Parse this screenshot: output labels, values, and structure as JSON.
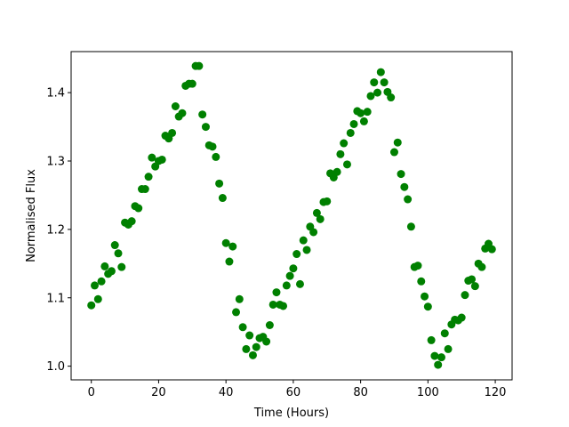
{
  "chart_data": {
    "type": "scatter",
    "title": "",
    "xlabel": "Time (Hours)",
    "ylabel": "Normalised Flux",
    "xlim": [
      -6,
      125
    ],
    "ylim": [
      0.98,
      1.46
    ],
    "xticks": [
      0,
      20,
      40,
      60,
      80,
      100,
      120
    ],
    "yticks": [
      1.0,
      1.1,
      1.2,
      1.3,
      1.4
    ],
    "ytick_labels": [
      "1.0",
      "1.1",
      "1.2",
      "1.3",
      "1.4"
    ],
    "grid": false,
    "marker_color": "#008000",
    "series": [
      {
        "points": [
          [
            0,
            1.089
          ],
          [
            1,
            1.118
          ],
          [
            2,
            1.098
          ],
          [
            3,
            1.124
          ],
          [
            4,
            1.146
          ],
          [
            5,
            1.135
          ],
          [
            6,
            1.139
          ],
          [
            7,
            1.177
          ],
          [
            8,
            1.165
          ],
          [
            9,
            1.145
          ],
          [
            10,
            1.21
          ],
          [
            11,
            1.207
          ],
          [
            12,
            1.212
          ],
          [
            13,
            1.234
          ],
          [
            14,
            1.231
          ],
          [
            15,
            1.259
          ],
          [
            16,
            1.259
          ],
          [
            17,
            1.277
          ],
          [
            18,
            1.305
          ],
          [
            19,
            1.292
          ],
          [
            20,
            1.3
          ],
          [
            21,
            1.302
          ],
          [
            22,
            1.337
          ],
          [
            23,
            1.333
          ],
          [
            24,
            1.341
          ],
          [
            25,
            1.38
          ],
          [
            26,
            1.365
          ],
          [
            27,
            1.37
          ],
          [
            28,
            1.41
          ],
          [
            29,
            1.413
          ],
          [
            30,
            1.413
          ],
          [
            31,
            1.439
          ],
          [
            32,
            1.439
          ],
          [
            33,
            1.368
          ],
          [
            34,
            1.35
          ],
          [
            35,
            1.323
          ],
          [
            36,
            1.321
          ],
          [
            37,
            1.306
          ],
          [
            38,
            1.267
          ],
          [
            39,
            1.246
          ],
          [
            40,
            1.18
          ],
          [
            41,
            1.153
          ],
          [
            42,
            1.175
          ],
          [
            43,
            1.079
          ],
          [
            44,
            1.098
          ],
          [
            45,
            1.057
          ],
          [
            46,
            1.025
          ],
          [
            47,
            1.045
          ],
          [
            48,
            1.016
          ],
          [
            49,
            1.028
          ],
          [
            50,
            1.041
          ],
          [
            51,
            1.043
          ],
          [
            52,
            1.036
          ],
          [
            53,
            1.06
          ],
          [
            54,
            1.09
          ],
          [
            55,
            1.108
          ],
          [
            56,
            1.09
          ],
          [
            57,
            1.088
          ],
          [
            58,
            1.118
          ],
          [
            59,
            1.132
          ],
          [
            60,
            1.143
          ],
          [
            61,
            1.164
          ],
          [
            62,
            1.12
          ],
          [
            63,
            1.184
          ],
          [
            64,
            1.17
          ],
          [
            65,
            1.204
          ],
          [
            66,
            1.196
          ],
          [
            67,
            1.224
          ],
          [
            68,
            1.215
          ],
          [
            69,
            1.24
          ],
          [
            70,
            1.241
          ],
          [
            71,
            1.282
          ],
          [
            72,
            1.276
          ],
          [
            73,
            1.284
          ],
          [
            74,
            1.31
          ],
          [
            75,
            1.326
          ],
          [
            76,
            1.295
          ],
          [
            77,
            1.341
          ],
          [
            78,
            1.354
          ],
          [
            79,
            1.373
          ],
          [
            80,
            1.37
          ],
          [
            81,
            1.358
          ],
          [
            82,
            1.372
          ],
          [
            83,
            1.395
          ],
          [
            84,
            1.415
          ],
          [
            85,
            1.4
          ],
          [
            86,
            1.43
          ],
          [
            87,
            1.415
          ],
          [
            88,
            1.401
          ],
          [
            89,
            1.393
          ],
          [
            90,
            1.313
          ],
          [
            91,
            1.327
          ],
          [
            92,
            1.281
          ],
          [
            93,
            1.262
          ],
          [
            94,
            1.244
          ],
          [
            95,
            1.204
          ],
          [
            96,
            1.145
          ],
          [
            97,
            1.147
          ],
          [
            98,
            1.124
          ],
          [
            99,
            1.102
          ],
          [
            100,
            1.087
          ],
          [
            101,
            1.038
          ],
          [
            102,
            1.015
          ],
          [
            103,
            1.002
          ],
          [
            104,
            1.013
          ],
          [
            105,
            1.048
          ],
          [
            106,
            1.025
          ],
          [
            107,
            1.061
          ],
          [
            108,
            1.068
          ],
          [
            109,
            1.067
          ],
          [
            110,
            1.071
          ],
          [
            111,
            1.104
          ],
          [
            112,
            1.125
          ],
          [
            113,
            1.127
          ],
          [
            114,
            1.117
          ],
          [
            115,
            1.15
          ],
          [
            116,
            1.145
          ],
          [
            117,
            1.172
          ],
          [
            118,
            1.179
          ],
          [
            119,
            1.171
          ]
        ]
      }
    ]
  }
}
